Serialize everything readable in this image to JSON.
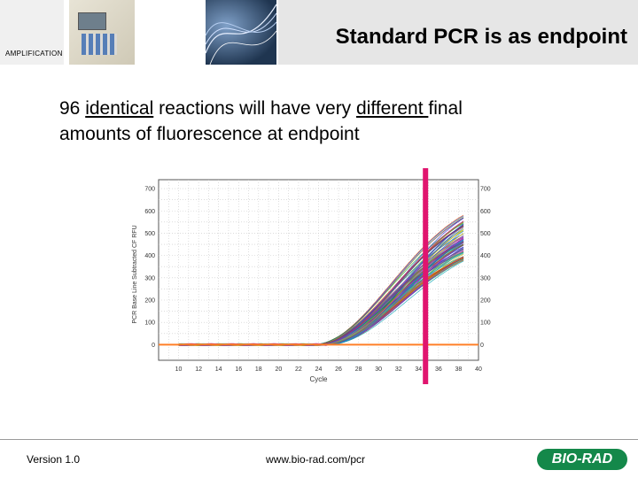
{
  "header": {
    "title": "Standard PCR is as endpoint",
    "section": "AMPLIFICATION"
  },
  "body": {
    "line1_a": "96 ",
    "line1_b": "identical",
    "line1_c": " reactions will have very ",
    "line1_d": "different ",
    "line1_e": "final",
    "line2": "amounts of fluorescence at endpoint"
  },
  "footer": {
    "version": "Version 1.0",
    "url": "www.bio-rad.com/pcr",
    "logo": "BIO-RAD"
  },
  "colors": {
    "endpoint_marker": "#e0156f",
    "threshold": "#ff7f27",
    "logo_green": "#14884a",
    "title_bar": "#e6e6e6"
  },
  "chart_data": {
    "type": "line",
    "xlabel": "Cycle",
    "ylabel": "PCR Base Line Subtracted CF RFU",
    "x_ticks": [
      "10",
      "12",
      "14",
      "16",
      "18",
      "20",
      "22",
      "24",
      "26",
      "28",
      "30",
      "32",
      "34",
      "36",
      "38",
      "40"
    ],
    "y_ticks": [
      "0",
      "100",
      "200",
      "300",
      "400",
      "500",
      "600",
      "700"
    ],
    "y_ticks_right": [
      "0",
      "100",
      "200",
      "300",
      "400",
      "500",
      "600",
      "700"
    ],
    "xlim": [
      8,
      40
    ],
    "ylim": [
      -70,
      740
    ],
    "grid": true,
    "threshold": 0,
    "endpoint_marker_x": 34.7,
    "series_count": 96,
    "curve_model": {
      "baseline": 0,
      "onset_cycle_range": [
        23.3,
        25.0
      ],
      "plateau_range": [
        450,
        700
      ]
    }
  }
}
